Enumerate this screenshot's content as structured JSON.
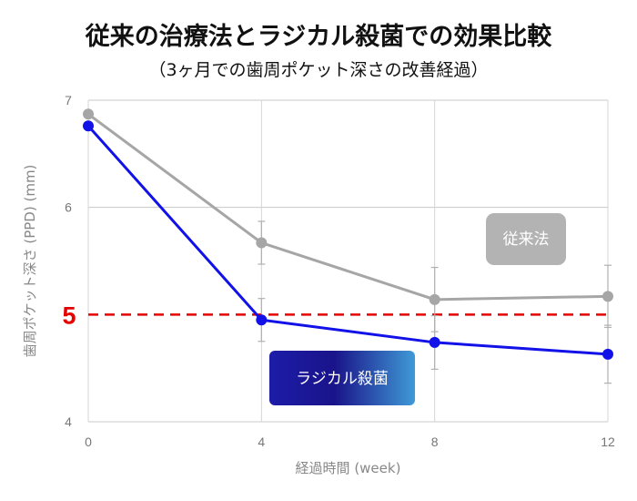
{
  "chart_data": {
    "type": "line",
    "title": "従来の治療法とラジカル殺菌での効果比較",
    "subtitle": "（3ヶ月での歯周ポケット深さの改善経過）",
    "xlabel": "経過時間 (week)",
    "ylabel": "歯周ポケット深さ (PPD) (mm)",
    "x": [
      0,
      4,
      8,
      12
    ],
    "xlim": [
      0,
      12
    ],
    "ylim": [
      4,
      7
    ],
    "xticks": [
      "0",
      "4",
      "8",
      "12"
    ],
    "yticks": [
      "4",
      "6",
      "7"
    ],
    "grid": true,
    "series": [
      {
        "name": "従来法",
        "color": "#a6a6a6",
        "values": [
          6.87,
          5.67,
          5.14,
          5.17
        ],
        "error": [
          0,
          0.2,
          0.3,
          0.29
        ]
      },
      {
        "name": "ラジカル殺菌",
        "color": "#1111e8",
        "values": [
          6.76,
          4.95,
          4.74,
          4.63
        ],
        "error": [
          0,
          0.2,
          0.25,
          0.27
        ]
      }
    ],
    "threshold": {
      "value": 5,
      "label": "5",
      "color": "#e60000"
    }
  }
}
